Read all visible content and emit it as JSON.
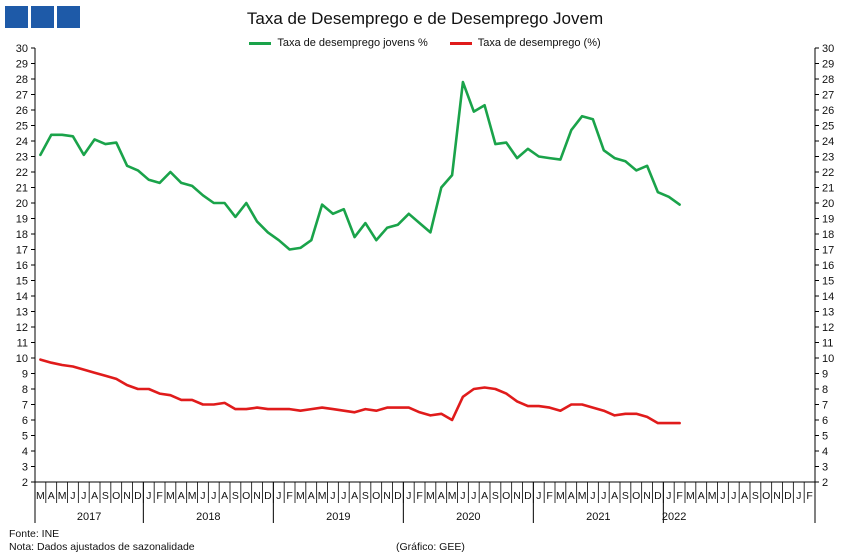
{
  "header": {
    "title": "Taxa  de Desemprego e de Desemprego Jovem",
    "logo_name": "three-blue-squares-logo"
  },
  "colors": {
    "youth": "#1aa34a",
    "total": "#e01b1b",
    "axis": "#000000",
    "logo": "#1e5aa8"
  },
  "chart_data": {
    "type": "line",
    "title": "Taxa  de Desemprego e de Desemprego Jovem",
    "xlabel": "",
    "ylabel": "",
    "ylim": [
      2,
      30
    ],
    "yticks": [
      2,
      3,
      4,
      5,
      6,
      7,
      8,
      9,
      10,
      11,
      12,
      13,
      14,
      15,
      16,
      17,
      18,
      19,
      20,
      21,
      22,
      23,
      24,
      25,
      26,
      27,
      28,
      29,
      30
    ],
    "grid": false,
    "legend_position": "top-center",
    "secondary_y_axis": true,
    "month_labels": [
      "M",
      "A",
      "M",
      "J",
      "J",
      "A",
      "S",
      "O",
      "N",
      "D",
      "J",
      "F",
      "M",
      "A",
      "M",
      "J",
      "J",
      "A",
      "S",
      "O",
      "N",
      "D",
      "J",
      "F",
      "M",
      "A",
      "M",
      "J",
      "J",
      "A",
      "S",
      "O",
      "N",
      "D",
      "J",
      "F",
      "M",
      "A",
      "M",
      "J",
      "J",
      "A",
      "S",
      "O",
      "N",
      "D",
      "J",
      "F",
      "M",
      "A",
      "M",
      "J",
      "J",
      "A",
      "S",
      "O",
      "N",
      "D",
      "J",
      "F",
      "M",
      "A",
      "M",
      "J",
      "J",
      "A",
      "S",
      "O",
      "N",
      "D",
      "J",
      "F"
    ],
    "years": [
      {
        "label": "2017",
        "start": 0,
        "end": 9
      },
      {
        "label": "2018",
        "start": 10,
        "end": 21
      },
      {
        "label": "2019",
        "start": 22,
        "end": 33
      },
      {
        "label": "2020",
        "start": 34,
        "end": 45
      },
      {
        "label": "2021",
        "start": 46,
        "end": 57
      },
      {
        "label": "2022",
        "start": 58,
        "end": 59
      }
    ],
    "series": [
      {
        "name": "Taxa de desemprego jovens %",
        "color": "#1aa34a",
        "values": [
          23.1,
          24.4,
          24.4,
          24.3,
          23.1,
          24.1,
          23.8,
          23.9,
          22.4,
          22.1,
          21.5,
          21.3,
          22.0,
          21.3,
          21.1,
          20.5,
          20.0,
          20.0,
          19.1,
          20.0,
          18.8,
          18.1,
          17.6,
          17.0,
          17.1,
          17.6,
          19.9,
          19.3,
          19.6,
          17.8,
          18.7,
          17.6,
          18.4,
          18.6,
          19.3,
          18.7,
          18.1,
          21.0,
          21.8,
          27.8,
          25.9,
          26.3,
          23.8,
          23.9,
          22.9,
          23.5,
          23.0,
          22.9,
          22.8,
          24.7,
          25.6,
          25.4,
          23.4,
          22.9,
          22.7,
          22.1,
          22.4,
          20.7,
          20.4,
          19.9
        ]
      },
      {
        "name": "Taxa de desemprego (%)",
        "color": "#e01b1b",
        "values": [
          9.9,
          9.7,
          9.55,
          9.45,
          9.25,
          9.05,
          8.85,
          8.65,
          8.25,
          8.0,
          8.0,
          7.7,
          7.6,
          7.3,
          7.3,
          7.0,
          7.0,
          7.1,
          6.7,
          6.7,
          6.8,
          6.7,
          6.7,
          6.7,
          6.6,
          6.7,
          6.8,
          6.7,
          6.6,
          6.5,
          6.7,
          6.6,
          6.8,
          6.8,
          6.8,
          6.5,
          6.3,
          6.4,
          6.0,
          7.5,
          8.0,
          8.1,
          8.0,
          7.7,
          7.2,
          6.9,
          6.9,
          6.8,
          6.6,
          7.0,
          7.0,
          6.8,
          6.6,
          6.3,
          6.4,
          6.4,
          6.2,
          5.8,
          5.8,
          5.8
        ]
      }
    ]
  },
  "footer": {
    "source": "Fonte: INE",
    "note": "Nota:  Dados ajustados  de sazonalidade",
    "credit": "(Gráfico: GEE)"
  }
}
